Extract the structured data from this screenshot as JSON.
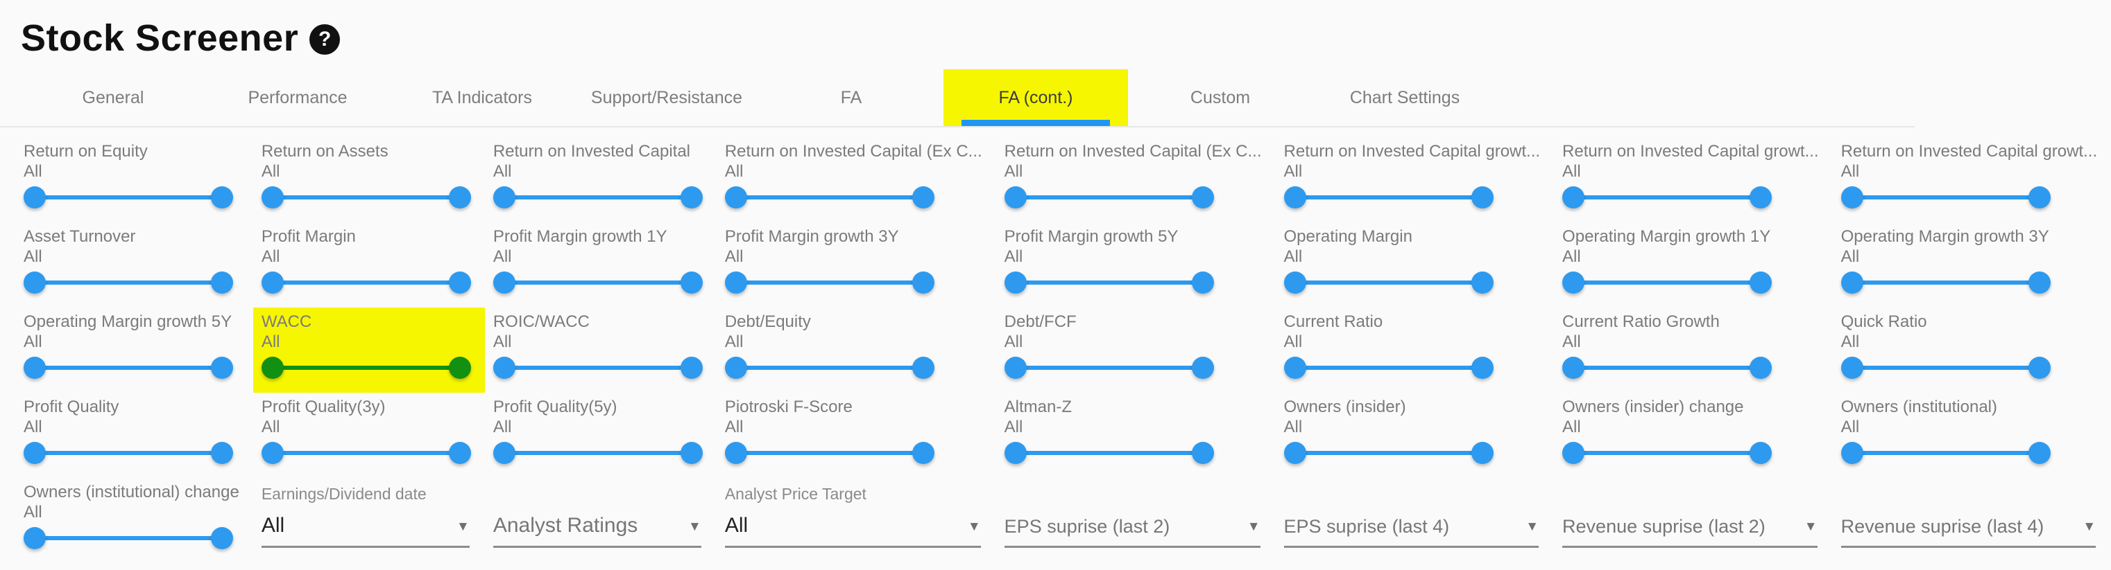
{
  "header": {
    "title": "Stock Screener",
    "help_glyph": "?"
  },
  "tabs": [
    {
      "label": "General"
    },
    {
      "label": "Performance"
    },
    {
      "label": "TA Indicators"
    },
    {
      "label": "Support/Resistance"
    },
    {
      "label": "FA"
    },
    {
      "label": "FA (cont.)"
    },
    {
      "label": "Custom"
    },
    {
      "label": "Chart Settings"
    }
  ],
  "active_tab_index": 5,
  "colors": {
    "highlight_yellow": "#f6f600",
    "tab_underline_blue": "#1f96f0",
    "slider_blue": "#2d9aef",
    "highlight_green": "#129012",
    "label_gray": "#7b7b7b",
    "select_dark": "#222222",
    "background": "#fafafa"
  },
  "icons": {
    "dropdown_arrow": "▼"
  },
  "filter_rows": [
    [
      {
        "type": "slider",
        "label": "Return on Equity",
        "value": "All"
      },
      {
        "type": "slider",
        "label": "Return on Assets",
        "value": "All"
      },
      {
        "type": "slider",
        "label": "Return on Invested Capital",
        "value": "All"
      },
      {
        "type": "slider",
        "label": "Return on Invested Capital (Ex C...",
        "value": "All"
      },
      {
        "type": "slider",
        "label": "Return on Invested Capital (Ex C...",
        "value": "All"
      },
      {
        "type": "slider",
        "label": "Return on Invested Capital growt...",
        "value": "All"
      },
      {
        "type": "slider",
        "label": "Return on Invested Capital growt...",
        "value": "All"
      },
      {
        "type": "slider",
        "label": "Return on Invested Capital growt...",
        "value": "All"
      }
    ],
    [
      {
        "type": "slider",
        "label": "Asset Turnover",
        "value": "All"
      },
      {
        "type": "slider",
        "label": "Profit Margin",
        "value": "All"
      },
      {
        "type": "slider",
        "label": "Profit Margin growth 1Y",
        "value": "All"
      },
      {
        "type": "slider",
        "label": "Profit Margin growth 3Y",
        "value": "All"
      },
      {
        "type": "slider",
        "label": "Profit Margin growth 5Y",
        "value": "All"
      },
      {
        "type": "slider",
        "label": "Operating Margin",
        "value": "All"
      },
      {
        "type": "slider",
        "label": "Operating Margin growth 1Y",
        "value": "All"
      },
      {
        "type": "slider",
        "label": "Operating Margin growth 3Y",
        "value": "All"
      }
    ],
    [
      {
        "type": "slider",
        "label": "Operating Margin growth 5Y",
        "value": "All"
      },
      {
        "type": "slider",
        "label": "WACC",
        "value": "All",
        "highlight": true
      },
      {
        "type": "slider",
        "label": "ROIC/WACC",
        "value": "All"
      },
      {
        "type": "slider",
        "label": "Debt/Equity",
        "value": "All"
      },
      {
        "type": "slider",
        "label": "Debt/FCF",
        "value": "All"
      },
      {
        "type": "slider",
        "label": "Current Ratio",
        "value": "All"
      },
      {
        "type": "slider",
        "label": "Current Ratio Growth",
        "value": "All"
      },
      {
        "type": "slider",
        "label": "Quick Ratio",
        "value": "All"
      }
    ],
    [
      {
        "type": "slider",
        "label": "Profit Quality",
        "value": "All"
      },
      {
        "type": "slider",
        "label": "Profit Quality(3y)",
        "value": "All"
      },
      {
        "type": "slider",
        "label": "Profit Quality(5y)",
        "value": "All"
      },
      {
        "type": "slider",
        "label": "Piotroski F-Score",
        "value": "All"
      },
      {
        "type": "slider",
        "label": "Altman-Z",
        "value": "All"
      },
      {
        "type": "slider",
        "label": "Owners (insider)",
        "value": "All"
      },
      {
        "type": "slider",
        "label": "Owners (insider) change",
        "value": "All"
      },
      {
        "type": "slider",
        "label": "Owners (institutional)",
        "value": "All"
      }
    ],
    [
      {
        "type": "slider",
        "label": "Owners (institutional) change",
        "value": "All"
      },
      {
        "type": "select",
        "label": "Earnings/Dividend date",
        "value": "All",
        "emphasis": true
      },
      {
        "type": "select",
        "label": "",
        "value": "Analyst Ratings",
        "emphasis": false
      },
      {
        "type": "select",
        "label": "Analyst Price Target",
        "value": "All",
        "emphasis": true
      },
      {
        "type": "select",
        "label": "",
        "value": "EPS suprise (last 2)",
        "emphasis": false,
        "compact": true
      },
      {
        "type": "select",
        "label": "",
        "value": "EPS suprise (last 4)",
        "emphasis": false,
        "compact": true
      },
      {
        "type": "select",
        "label": "",
        "value": "Revenue suprise (last 2)",
        "emphasis": false,
        "compact": true
      },
      {
        "type": "select",
        "label": "",
        "value": "Revenue suprise (last 4)",
        "emphasis": false,
        "compact": true
      }
    ]
  ]
}
